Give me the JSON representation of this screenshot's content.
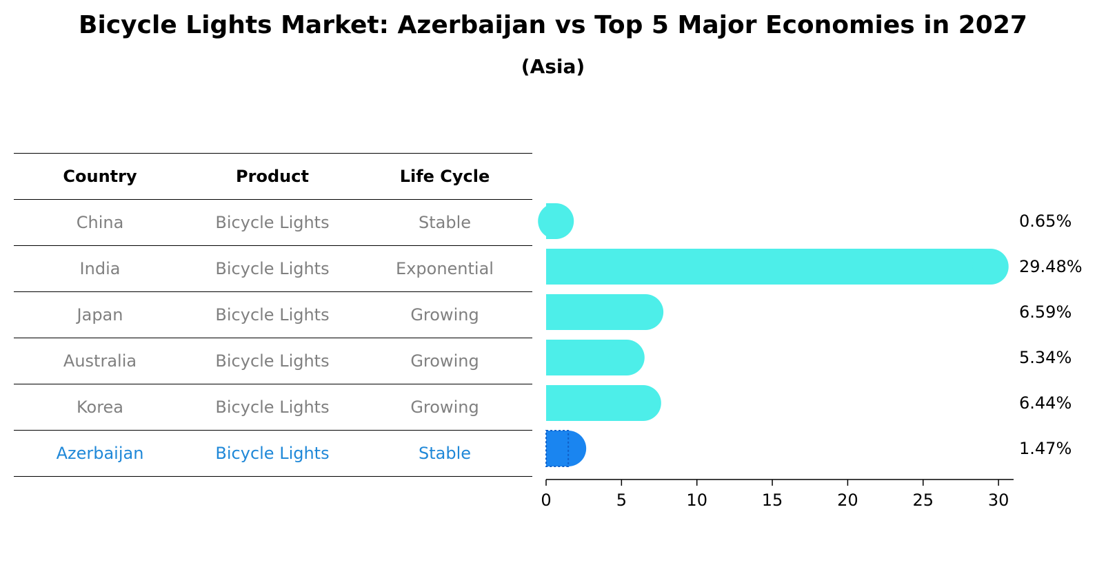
{
  "title": "Bicycle Lights Market: Azerbaijan vs Top 5 Major Economies in 2027",
  "subtitle": "(Asia)",
  "table": {
    "headers": [
      "Country",
      "Product",
      "Life Cycle"
    ],
    "rows": [
      {
        "country": "China",
        "product": "Bicycle Lights",
        "life_cycle": "Stable"
      },
      {
        "country": "India",
        "product": "Bicycle Lights",
        "life_cycle": "Exponential"
      },
      {
        "country": "Japan",
        "product": "Bicycle Lights",
        "life_cycle": "Growing"
      },
      {
        "country": "Australia",
        "product": "Bicycle Lights",
        "life_cycle": "Growing"
      },
      {
        "country": "Korea",
        "product": "Bicycle Lights",
        "life_cycle": "Growing"
      },
      {
        "country": "Azerbaijan",
        "product": "Bicycle Lights",
        "life_cycle": "Stable"
      }
    ]
  },
  "colors": {
    "bar": "#4deee9",
    "highlight_bar": "#1a85f0",
    "highlight_text": "#1f88d8",
    "muted_text": "#808080"
  },
  "chart_data": {
    "type": "bar",
    "orientation": "horizontal",
    "categories": [
      "China",
      "India",
      "Japan",
      "Australia",
      "Korea",
      "Azerbaijan"
    ],
    "values": [
      0.65,
      29.48,
      6.59,
      5.34,
      6.44,
      1.47
    ],
    "value_labels": [
      "0.65%",
      "29.48%",
      "6.59%",
      "5.34%",
      "6.44%",
      "1.47%"
    ],
    "highlight": "Azerbaijan",
    "xlim": [
      0,
      31
    ],
    "xticks": [
      0,
      5,
      10,
      15,
      20,
      25,
      30
    ],
    "xlabel": "",
    "ylabel": "",
    "grid": false
  }
}
